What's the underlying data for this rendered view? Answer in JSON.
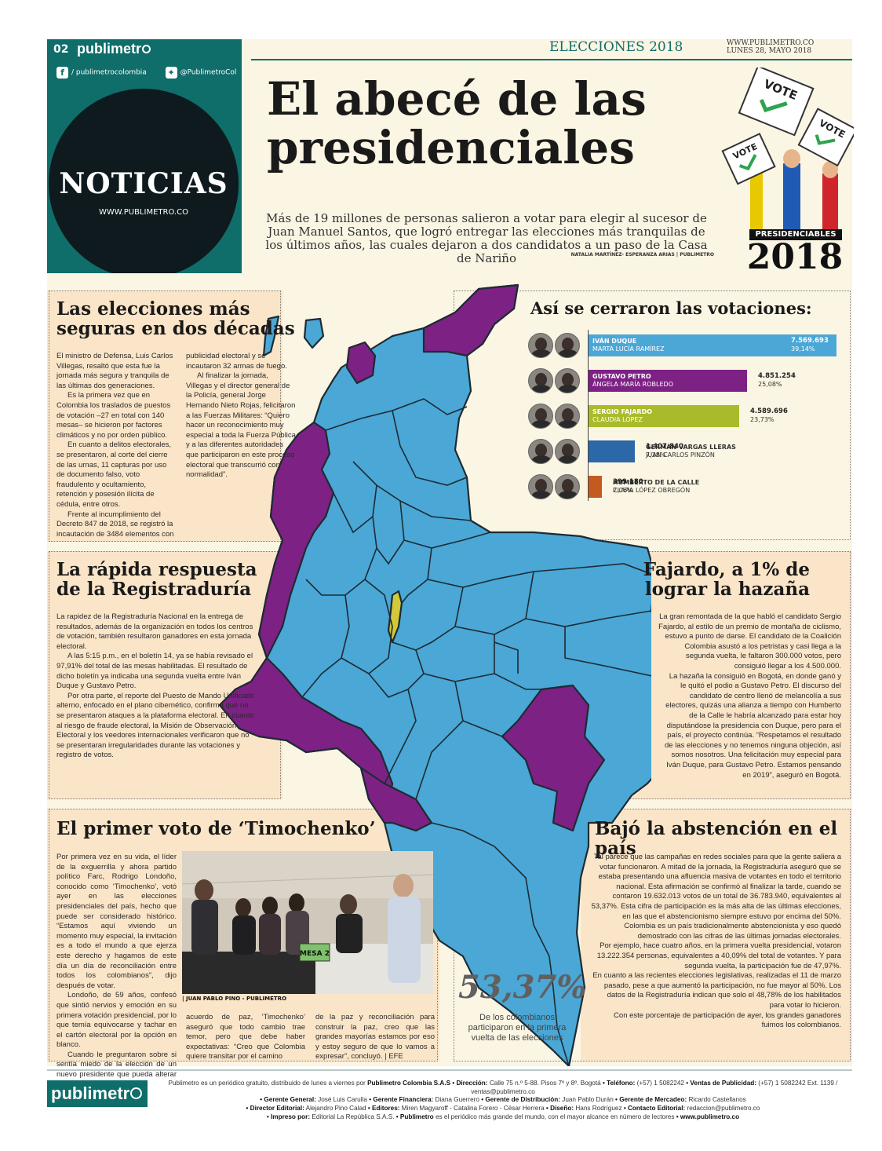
{
  "header": {
    "page_number": "02",
    "brand": "publimetr",
    "facebook": "/ publimetrocolombia",
    "twitter": "@PublimetroCol",
    "section": "NOTICIAS",
    "section_url": "WWW.PUBLIMETRO.CO",
    "edition": "ELECCIONES 2018",
    "site_url": "WWW.PUBLIMETRO.CO",
    "date": "LUNES 28, MAYO 2018"
  },
  "lead": {
    "headline_line1": "El abecé de las",
    "headline_line2": "presidenciales",
    "standfirst": "Más de 19 millones de personas salieron a votar para elegir al sucesor de Juan Manuel Santos, que logró entregar las elecciones más tranquilas de los últimos años, las cuales dejaron a dos candidatos a un paso de la Casa de Nariño",
    "byline": "NATALIA MARTÍNEZ- ESPERANZA ARIAS | PUBLIMETRO"
  },
  "logo_art": {
    "vote_word": "VOTE",
    "label": "PRESIDENCIABLES",
    "year": "2018"
  },
  "map": {
    "colors": {
      "duque": "#4aa7d6",
      "petro": "#7d2184",
      "fajardo": "#d2c83a",
      "border": "#1d2b33"
    }
  },
  "article_seguras": {
    "title_line1": "Las elecciones más",
    "title_line2": "seguras en dos décadas",
    "col1": [
      "El ministro de Defensa, Luis Carlos Villegas, resaltó que esta fue la jornada más segura y tranquila de las últimas dos generaciones.",
      "Es la primera vez que en Colombia los traslados de puestos de votación –27 en total con 140 mesas– se hicieron por factores climáticos y no por orden público.",
      "En cuanto a delitos electorales, se presentaron, al corte del cierre de las urnas, 11 capturas por uso de documento falso, voto fraudulento y ocultamiento, retención y posesión ilícita de cédula, entre otros.",
      "Frente al incumplimiento del Decreto 847 de 2018, se registró la incautación de 3484 elementos con"
    ],
    "col2": [
      "publicidad electoral y se incautaron 32 armas de fuego.",
      "Al finalizar la jornada, Villegas y el director general de la Policía, general Jorge Hernando Nieto Rojas, felicitaron a las Fuerzas Militares: “Quiero hacer un reconocimiento muy especial a toda la Fuerza Pública y a las diferentes autoridades que participaron en este proceso electoral que transcurrió con normalidad”."
    ]
  },
  "results": {
    "title": "Así se cerraron las votaciones:",
    "candidates": [
      {
        "name": "IVÁN DUQUE",
        "running_mate": "MARTA LUCÍA RAMÍREZ",
        "votes": "7.569.693",
        "percent": "39,14%",
        "share": 39.14,
        "color": "#4aa7d6"
      },
      {
        "name": "GUSTAVO PETRO",
        "running_mate": "ÁNGELA MARÍA ROBLEDO",
        "votes": "4.851.254",
        "percent": "25,08%",
        "share": 25.08,
        "color": "#7d2184"
      },
      {
        "name": "SERGIO FAJARDO",
        "running_mate": "CLAUDIA LÓPEZ",
        "votes": "4.589.696",
        "percent": "23,73%",
        "share": 23.73,
        "color": "#a9bb2b"
      },
      {
        "name": "GERMÁN VARGAS LLERAS",
        "running_mate": "JUAN CARLOS PINZÓN",
        "votes": "1.407.840",
        "percent": "7,28%",
        "share": 7.28,
        "color": "#2c68a8"
      },
      {
        "name": "HUMBERTO DE LA CALLE",
        "running_mate": "CLARA LÓPEZ OBREGÓN",
        "votes": "399.180",
        "percent": "2,06%",
        "share": 2.06,
        "color": "#c45a22"
      }
    ]
  },
  "article_registraduria": {
    "title_line1": "La rápida respuesta",
    "title_line2": "de la Registraduría",
    "paragraphs": [
      "La rapidez de la Registraduría Nacional en la entrega de resultados, además de la organización en todos los centros de votación, también resultaron ganadores en esta jornada electoral.",
      "A las 5:15 p.m., en el boletín 14, ya se había revisado el 97,91% del total de las mesas habilitadas. El resultado de dicho boletín ya indicaba una segunda vuelta entre Iván Duque y Gustavo Petro.",
      "Por otra parte, el reporte del Puesto de Mando Unificado alterno, enfocado en el plano cibernético, confirmó que no se presentaron ataques a la plataforma electoral. En cuanto al riesgo de fraude electoral, la Misión de Observación Electoral y los veedores internacionales verificaron que no se presentaran irregularidades durante las votaciones y registro de votos."
    ]
  },
  "article_fajardo": {
    "title_line1": "Fajardo, a 1% de",
    "title_line2": "lograr la hazaña",
    "paragraphs": [
      "La gran remontada de la que habló el candidato Sergio Fajardo, al estilo de un premio de montaña de ciclismo, estuvo a punto de darse. El candidato de la Coalición Colombia asustó a los petristas y casi llega a la segunda vuelta, le faltaron 300.000 votos, pero consiguió llegar a los 4.500.000.",
      "La hazaña la consiguió en Bogotá, en donde ganó y le quitó el podio a Gustavo Petro. El discurso del candidato de centro llenó de melancolía a sus electores, quizás una alianza a tiempo con Humberto de la Calle le habría alcanzado para estar hoy disputándose la presidencia con Duque, pero para el país, el proyecto continúa. “Respetamos el resultado de las elecciones y no tenemos ninguna objeción, así somos nosotros. Una felicitación muy especial para Iván Duque, para Gustavo Petro. Estamos pensando en 2019”, aseguró en Bogotá."
    ]
  },
  "article_timochenko": {
    "title": "El primer voto de ‘Timochenko’",
    "col1": [
      "Por primera vez en su vida, el líder de la exguerrilla y ahora partido político Farc, Rodrigo Londoño, conocido como ‘Timochenko’, votó ayer en las elecciones presidenciales del país, hecho que puede ser considerado histórico. “Estamos aquí viviendo un momento muy especial, la invitación es a todo el mundo a que ejerza este derecho y hagamos de este día un día de reconciliación entre todos los colombianos”, dijo después de votar.",
      "Londoño, de 59 años, confesó que sintió nervios y emoción en su primera votación presidencial, por lo que temía equivocarse y tachar en el cartón electoral por la opción en blanco.",
      "Cuando le preguntaron sobre si sentía miedo de la elección de un nuevo presidente que pueda alterar el"
    ],
    "col2": "acuerdo de paz, ‘Timochenko’ aseguró que todo cambio trae temor, pero que debe haber expectativas: “Creo que Colombia quiere transitar por el camino",
    "col3": "de la paz y reconciliación para construir la paz, creo que las grandes mayorías estamos por eso y estoy seguro de que lo vamos a expresar”, concluyó. | EFE",
    "photo_credit": "| JUAN PABLO PINO - PUBLIMETRO",
    "photo_sign": "MESA 2"
  },
  "article_abstencion": {
    "title": "Bajó la abstención en el país",
    "paragraphs": [
      "Tal parece que las campañas en redes sociales para que la gente saliera a votar funcionaron. A mitad de la jornada, la Registraduría aseguró que se estaba presentando una afluencia masiva de votantes en todo el territorio nacional. Esta afirmación se confirmó al finalizar la tarde, cuando se contaron 19.632.013 votos de un total de 36.783.940, equivalentes al 53,37%. Esta cifra de participación es la más alta de las últimas elecciones, en las que el abstencionismo siempre estuvo por encima del 50%.",
      "Colombia es un país tradicionalmente abstencionista y eso quedó demostrado con las cifras de las últimas jornadas electorales.",
      "Por ejemplo, hace cuatro años, en la primera vuelta presidencial, votaron 13.222.354 personas, equivalentes a 40,09% del total de votantes. Y para segunda vuelta, la participación fue de 47,97%.",
      "En cuanto a las recientes elecciones legislativas, realizadas el 11 de marzo pasado, pese a que aumentó la participación, no fue mayor al 50%. Los datos de la Registraduría indican que solo el 48,78% de los habilitados para votar lo hicieron.",
      "Con este porcentaje de participación de ayer, los grandes ganadores fuimos los colombianos."
    ],
    "big_number": "53,37%",
    "big_number_caption": "De los colombianos participaron en la primera vuelta de las elecciones"
  },
  "footer": {
    "brand": "publimetr",
    "line1_intro": "Publimetro es un periódico gratuito, distribuido de lunes a viernes por",
    "company": "Publimetro Colombia S.A.S",
    "dir_label": "• Dirección:",
    "dir": "Calle 75 n.º 5-88. Pisos 7º y 8º. Bogotá",
    "tel_label": "• Teléfono:",
    "tel": "(+57) 1 5082242",
    "ads_label": "• Ventas de Publicidad:",
    "ads": "(+57) 1 5082242 Ext. 1139 / ventas@publimetro.co",
    "gg_label": "• Gerente General:",
    "gg": "José Luis Carulla",
    "gf_label": "• Gerente Financiera:",
    "gf": "Diana Guerrero",
    "gd_label": "• Gerente de Distribución:",
    "gd": "Juan Pablo Durán",
    "gm_label": "• Gerente de Mercadeo:",
    "gm": "Ricardo Castellanos",
    "de_label": "• Director Editorial:",
    "de": "Alejandro Pino Calad",
    "ed_label": "• Editores:",
    "ed": "Miren Magyaroff - Catalina Forero - César Herrera",
    "di_label": "• Diseño:",
    "di": "Hans Rodríguez",
    "ce_label": "• Contacto Editorial:",
    "ce": "redaccion@publimetro.co",
    "imp_label": "• Impreso por:",
    "imp": "Editorial La República S.A.S.",
    "pub_label": "• Publimetro",
    "pub": "es el periódico más grande del mundo, con el mayor alcance en número de lectores",
    "site": "• www.publimetro.co"
  }
}
